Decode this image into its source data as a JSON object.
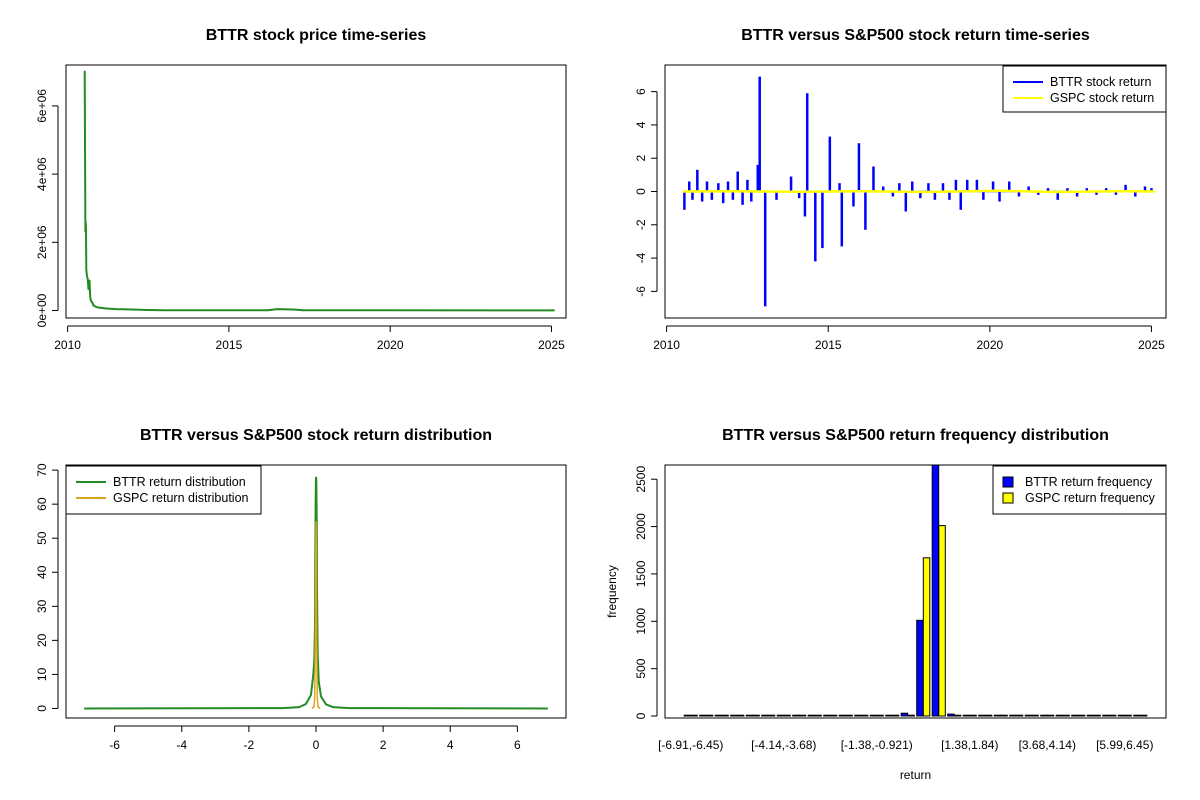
{
  "chart_data": [
    {
      "type": "line",
      "title": "BTTR stock price time-series",
      "xlabel": "",
      "ylabel": "",
      "xlim": [
        2009.95,
        2025.45
      ],
      "ylim": [
        -220000,
        7200000
      ],
      "x_ticks": [
        2010,
        2015,
        2020,
        2025
      ],
      "x_tick_labels": [
        "2010",
        "2015",
        "2020",
        "2025"
      ],
      "y_ticks": [
        0,
        2000000,
        4000000,
        6000000
      ],
      "y_tick_labels": [
        "0e+00",
        "2e+06",
        "4e+06",
        "6e+06"
      ],
      "grid": false,
      "legend": null,
      "series": [
        {
          "color": "#228B22",
          "x": [
            2010.5,
            2010.53,
            2010.55,
            2010.56,
            2010.57,
            2010.58,
            2010.6,
            2010.62,
            2010.65,
            2010.68,
            2010.7,
            2010.72,
            2010.75,
            2010.78,
            2010.8,
            2010.85,
            2010.9,
            2011.0,
            2011.2,
            2011.5,
            2012.0,
            2012.5,
            2013.0,
            2016.2,
            2016.5,
            2017.0,
            2017.3,
            2020.0,
            2025.1
          ],
          "y": [
            7000000,
            7000000,
            2300000,
            2600000,
            2400000,
            1200000,
            1000000,
            950000,
            600000,
            900000,
            400000,
            300000,
            250000,
            200000,
            150000,
            120000,
            100000,
            80000,
            60000,
            40000,
            30000,
            15000,
            10000,
            10000,
            40000,
            30000,
            10000,
            5000,
            2000
          ]
        }
      ]
    },
    {
      "type": "line",
      "title": "BTTR versus S&P500 stock return time-series",
      "xlabel": "",
      "ylabel": "",
      "xlim": [
        2009.95,
        2025.45
      ],
      "ylim": [
        -7.6,
        7.6
      ],
      "x_ticks": [
        2010,
        2015,
        2020,
        2025
      ],
      "x_tick_labels": [
        "2010",
        "2015",
        "2020",
        "2025"
      ],
      "y_ticks": [
        -6,
        -4,
        -2,
        0,
        2,
        4,
        6
      ],
      "y_tick_labels": [
        "-6",
        "-4",
        "-2",
        "0",
        "2",
        "4",
        "6"
      ],
      "grid": false,
      "legend": {
        "position": "top-right",
        "entries": [
          "BTTR stock return",
          "GSPC stock return"
        ]
      },
      "series": [
        {
          "name": "BTTR stock return",
          "color": "#0000FF",
          "x": [
            2010.55,
            2010.7,
            2010.8,
            2010.95,
            2011.1,
            2011.25,
            2011.4,
            2011.6,
            2011.75,
            2011.9,
            2012.05,
            2012.2,
            2012.35,
            2012.5,
            2012.62,
            2012.82,
            2012.88,
            2013.05,
            2013.4,
            2013.85,
            2014.1,
            2014.28,
            2014.35,
            2014.6,
            2014.82,
            2015.05,
            2015.35,
            2015.42,
            2015.78,
            2015.95,
            2016.15,
            2016.4,
            2016.7,
            2017.0,
            2017.2,
            2017.4,
            2017.6,
            2017.85,
            2018.1,
            2018.3,
            2018.55,
            2018.75,
            2018.95,
            2019.1,
            2019.3,
            2019.6,
            2019.8,
            2020.1,
            2020.3,
            2020.6,
            2020.9,
            2021.2,
            2021.5,
            2021.8,
            2022.1,
            2022.4,
            2022.7,
            2023.0,
            2023.3,
            2023.6,
            2023.9,
            2024.2,
            2024.5,
            2024.8,
            2025.0
          ],
          "y": [
            -1.1,
            0.6,
            -0.5,
            1.3,
            -0.6,
            0.6,
            -0.5,
            0.5,
            -0.7,
            0.6,
            -0.5,
            1.2,
            -0.8,
            0.7,
            -0.6,
            1.6,
            6.9,
            -6.9,
            -0.5,
            0.9,
            -0.4,
            -1.5,
            5.9,
            -4.2,
            -3.4,
            3.3,
            0.5,
            -3.3,
            -0.9,
            2.9,
            -2.3,
            1.5,
            0.3,
            -0.3,
            0.5,
            -1.2,
            0.6,
            -0.4,
            0.5,
            -0.5,
            0.5,
            -0.5,
            0.7,
            -1.1,
            0.7,
            0.7,
            -0.5,
            0.6,
            -0.6,
            0.6,
            -0.3,
            0.3,
            -0.2,
            0.2,
            -0.5,
            0.2,
            -0.3,
            0.2,
            -0.2,
            0.2,
            -0.2,
            0.4,
            -0.3,
            0.3,
            0.2
          ]
        },
        {
          "name": "GSPC stock return",
          "color": "#FFFF00",
          "x": [
            2010.5,
            2012.0,
            2014.0,
            2016.0,
            2018.0,
            2020.2,
            2022.0,
            2024.0,
            2025.1
          ],
          "y": [
            0.0,
            0.02,
            -0.02,
            0.02,
            -0.03,
            0.05,
            -0.03,
            0.02,
            0.0
          ]
        }
      ]
    },
    {
      "type": "line",
      "title": "BTTR versus S&P500 stock return distribution",
      "xlabel": "",
      "ylabel": "",
      "xlim": [
        -7.45,
        7.45
      ],
      "ylim": [
        -2.8,
        71.5
      ],
      "x_ticks": [
        -6,
        -4,
        -2,
        0,
        2,
        4,
        6
      ],
      "x_tick_labels": [
        "-6",
        "-4",
        "-2",
        "0",
        "2",
        "4",
        "6"
      ],
      "y_ticks": [
        0,
        10,
        20,
        30,
        40,
        50,
        60,
        70
      ],
      "y_tick_labels": [
        "0",
        "10",
        "20",
        "30",
        "40",
        "50",
        "60",
        "70"
      ],
      "grid": false,
      "legend": {
        "position": "top-left",
        "entries": [
          "BTTR return distribution",
          "GSPC return distribution"
        ]
      },
      "series": [
        {
          "name": "BTTR return distribution",
          "color": "#228B22",
          "x": [
            -6.91,
            -1.0,
            -0.5,
            -0.3,
            -0.15,
            -0.08,
            -0.05,
            -0.03,
            -0.02,
            -0.01,
            0.0,
            0.01,
            0.02,
            0.03,
            0.05,
            0.08,
            0.15,
            0.3,
            0.5,
            1.0,
            6.91
          ],
          "y": [
            0.0,
            0.1,
            0.4,
            1.3,
            4.0,
            10.0,
            14.0,
            25.0,
            45.0,
            62.0,
            68.0,
            67.0,
            55.0,
            35.0,
            16.0,
            8.0,
            3.5,
            1.2,
            0.4,
            0.1,
            0.0
          ]
        },
        {
          "name": "GSPC return distribution",
          "color": "#DAA520",
          "x": [
            -0.12,
            -0.06,
            -0.04,
            -0.02,
            -0.01,
            0.0,
            0.01,
            0.02,
            0.04,
            0.06,
            0.12
          ],
          "y": [
            0.0,
            0.5,
            3.0,
            20.0,
            45.0,
            55.0,
            45.0,
            20.0,
            3.0,
            0.5,
            0.0
          ]
        }
      ]
    },
    {
      "type": "bar",
      "title": "BTTR versus S&P500 return frequency distribution",
      "xlabel": "return",
      "ylabel": "frequency",
      "ylim": [
        0,
        2650
      ],
      "y_ticks": [
        0,
        500,
        1000,
        1500,
        2000,
        2500
      ],
      "y_tick_labels": [
        "0",
        "500",
        "1000",
        "1500",
        "2000",
        "2500"
      ],
      "x_tick_labels": [
        "[-6.91,-6.45)",
        "[-4.14,-3.68)",
        "[-1.38,-0.921)",
        "[1.38,1.84)",
        "[3.68,4.14)",
        "[5.99,6.45)"
      ],
      "x_tick_positions": [
        0,
        6,
        12,
        18,
        23,
        28
      ],
      "grid": false,
      "legend": {
        "position": "top-right",
        "entries": [
          "BTTR return frequency",
          "GSPC return frequency"
        ]
      },
      "series": [
        {
          "name": "BTTR return frequency",
          "color": "#0000FF",
          "values": [
            1,
            1,
            1,
            1,
            1,
            1,
            1,
            1,
            1,
            1,
            1,
            1,
            1,
            5,
            30,
            1010,
            2650,
            20,
            5,
            2,
            1,
            1,
            1,
            1,
            1,
            1,
            1,
            1,
            1,
            1
          ]
        },
        {
          "name": "GSPC return frequency",
          "color": "#FFFF00",
          "values": [
            0,
            0,
            0,
            0,
            0,
            0,
            0,
            0,
            0,
            0,
            0,
            0,
            0,
            0,
            0,
            1670,
            2010,
            0,
            0,
            0,
            0,
            0,
            0,
            0,
            0,
            0,
            0,
            0,
            0,
            0
          ]
        }
      ]
    }
  ]
}
